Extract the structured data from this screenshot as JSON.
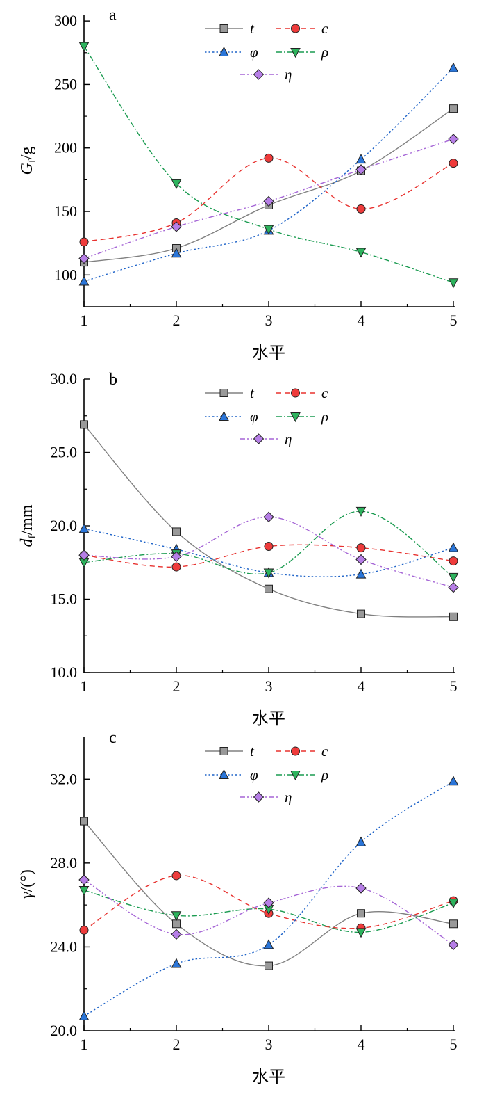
{
  "chart_data": [
    {
      "type": "line",
      "panel_letter": "a",
      "ylabel_main": "G",
      "ylabel_sub": "f",
      "ylabel_unit": "/g",
      "xlabel": "水平",
      "x": [
        1,
        2,
        3,
        4,
        5
      ],
      "xticks": [
        "1",
        "2",
        "3",
        "4",
        "5"
      ],
      "ylim": [
        75,
        305
      ],
      "yticks": [
        100,
        150,
        200,
        250,
        300
      ],
      "yticklabels": [
        "100",
        "150",
        "200",
        "250",
        "300"
      ],
      "series": [
        {
          "name": "t",
          "color": "#808080",
          "dash": "solid",
          "marker": "square",
          "marker_fill": "#999999",
          "values": [
            110,
            121,
            155,
            182,
            231
          ]
        },
        {
          "name": "c",
          "color": "#e8322f",
          "dash": "dash",
          "marker": "circle",
          "marker_fill": "#ee3b3b",
          "values": [
            126,
            141,
            192,
            152,
            188
          ]
        },
        {
          "name": "φ",
          "color": "#1e63c8",
          "dash": "dot",
          "marker": "triangle-up",
          "marker_fill": "#2a75d8",
          "values": [
            95,
            117,
            135,
            191,
            263
          ]
        },
        {
          "name": "ρ",
          "color": "#1a9b50",
          "dash": "dashdot",
          "marker": "triangle-down",
          "marker_fill": "#2db35d",
          "values": [
            280,
            172,
            136,
            118,
            94
          ]
        },
        {
          "name": "η",
          "color": "#a565d6",
          "dash": "dashdotdot",
          "marker": "diamond",
          "marker_fill": "#b67ee6",
          "values": [
            113,
            138,
            158,
            183,
            207
          ]
        }
      ]
    },
    {
      "type": "line",
      "panel_letter": "b",
      "ylabel_main": "d",
      "ylabel_sub": "f",
      "ylabel_unit": "/mm",
      "xlabel": "水平",
      "x": [
        1,
        2,
        3,
        4,
        5
      ],
      "xticks": [
        "1",
        "2",
        "3",
        "4",
        "5"
      ],
      "ylim": [
        10,
        30
      ],
      "yticks": [
        10,
        15,
        20,
        25,
        30
      ],
      "yticklabels": [
        "10.0",
        "15.0",
        "20.0",
        "25.0",
        "30.0"
      ],
      "series": [
        {
          "name": "t",
          "color": "#808080",
          "dash": "solid",
          "marker": "square",
          "marker_fill": "#999999",
          "values": [
            26.9,
            19.6,
            15.7,
            14.0,
            13.8
          ]
        },
        {
          "name": "c",
          "color": "#e8322f",
          "dash": "dash",
          "marker": "circle",
          "marker_fill": "#ee3b3b",
          "values": [
            18.0,
            17.2,
            18.6,
            18.5,
            17.6
          ]
        },
        {
          "name": "φ",
          "color": "#1e63c8",
          "dash": "dot",
          "marker": "triangle-up",
          "marker_fill": "#2a75d8",
          "values": [
            19.8,
            18.4,
            16.8,
            16.7,
            18.5
          ]
        },
        {
          "name": "ρ",
          "color": "#1a9b50",
          "dash": "dashdot",
          "marker": "triangle-down",
          "marker_fill": "#2db35d",
          "values": [
            17.5,
            18.1,
            16.8,
            21.0,
            16.5
          ]
        },
        {
          "name": "η",
          "color": "#a565d6",
          "dash": "dashdotdot",
          "marker": "diamond",
          "marker_fill": "#b67ee6",
          "values": [
            18.0,
            17.9,
            20.6,
            17.7,
            15.8
          ]
        }
      ]
    },
    {
      "type": "line",
      "panel_letter": "c",
      "ylabel_main": "γ",
      "ylabel_sub": "",
      "ylabel_unit": "/(°)",
      "xlabel": "水平",
      "x": [
        1,
        2,
        3,
        4,
        5
      ],
      "xticks": [
        "1",
        "2",
        "3",
        "4",
        "5"
      ],
      "ylim": [
        20,
        34
      ],
      "yticks": [
        20,
        24,
        28,
        32
      ],
      "yticklabels": [
        "20.0",
        "24.0",
        "28.0",
        "32.0"
      ],
      "series": [
        {
          "name": "t",
          "color": "#808080",
          "dash": "solid",
          "marker": "square",
          "marker_fill": "#999999",
          "values": [
            30.0,
            25.1,
            23.1,
            25.6,
            25.1
          ]
        },
        {
          "name": "c",
          "color": "#e8322f",
          "dash": "dash",
          "marker": "circle",
          "marker_fill": "#ee3b3b",
          "values": [
            24.8,
            27.4,
            25.6,
            24.9,
            26.2
          ]
        },
        {
          "name": "φ",
          "color": "#1e63c8",
          "dash": "dot",
          "marker": "triangle-up",
          "marker_fill": "#2a75d8",
          "values": [
            20.7,
            23.2,
            24.1,
            29.0,
            31.9
          ]
        },
        {
          "name": "ρ",
          "color": "#1a9b50",
          "dash": "dashdot",
          "marker": "triangle-down",
          "marker_fill": "#2db35d",
          "values": [
            26.7,
            25.5,
            25.8,
            24.7,
            26.1
          ]
        },
        {
          "name": "η",
          "color": "#a565d6",
          "dash": "dashdotdot",
          "marker": "diamond",
          "marker_fill": "#b67ee6",
          "values": [
            27.2,
            24.6,
            26.1,
            26.8,
            24.1
          ]
        }
      ]
    }
  ]
}
